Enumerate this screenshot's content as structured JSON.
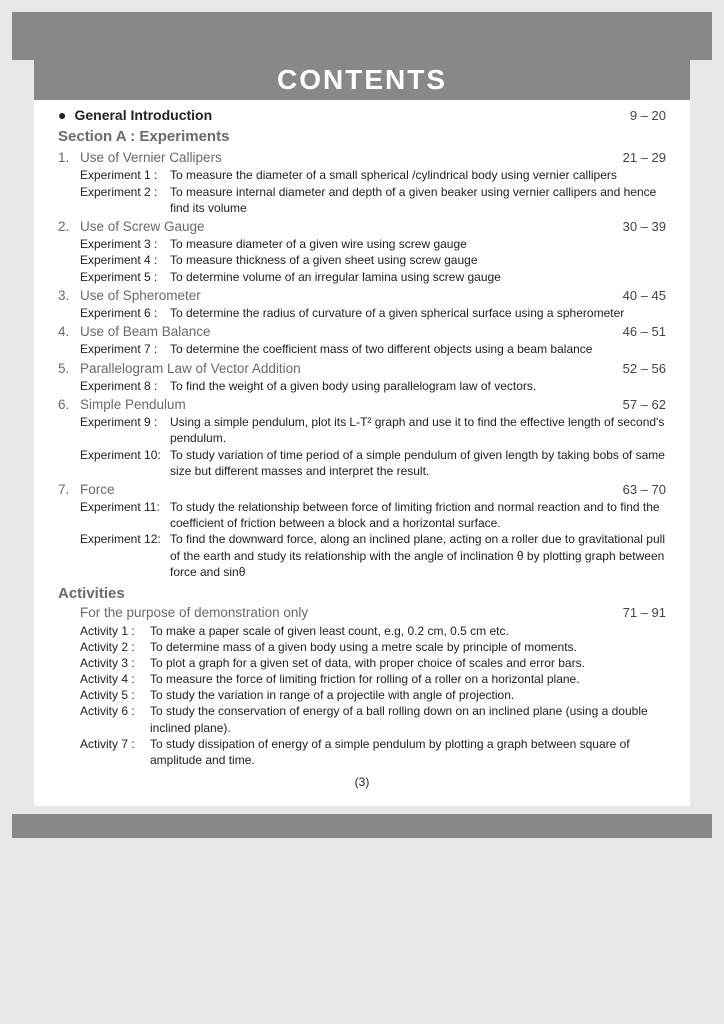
{
  "title": "CONTENTS",
  "general_intro": {
    "label": "General Introduction",
    "pages": "9 – 20"
  },
  "section_a": "Section A :  Experiments",
  "topics": [
    {
      "num": "1.",
      "title": "Use of Vernier Callipers",
      "pages": "21 – 29",
      "experiments": [
        {
          "label": "Experiment 1 :",
          "text": "To measure the diameter of a small spherical /cylindrical body using vernier callipers"
        },
        {
          "label": "Experiment 2 :",
          "text": "To measure internal diameter and depth of a given beaker using vernier callipers and hence find its volume"
        }
      ]
    },
    {
      "num": "2.",
      "title": "Use of Screw Gauge",
      "pages": "30 – 39",
      "experiments": [
        {
          "label": "Experiment 3 :",
          "text": "To measure diameter of a given wire using screw gauge"
        },
        {
          "label": "Experiment 4 :",
          "text": "To measure thickness of a given sheet using screw gauge"
        },
        {
          "label": "Experiment 5 :",
          "text": "To determine volume of an irregular lamina using screw gauge"
        }
      ]
    },
    {
      "num": "3.",
      "title": "Use of Spherometer",
      "pages": "40 – 45",
      "experiments": [
        {
          "label": "Experiment 6 :",
          "text": "To determine the radius of curvature of a given spherical surface using a spherometer"
        }
      ]
    },
    {
      "num": "4.",
      "title": "Use of Beam Balance",
      "pages": "46 – 51",
      "experiments": [
        {
          "label": "Experiment 7 :",
          "text": "To determine the coefficient mass of two different objects using a beam balance"
        }
      ]
    },
    {
      "num": "5.",
      "title": "Parallelogram Law of Vector Addition",
      "pages": "52 – 56",
      "experiments": [
        {
          "label": "Experiment 8 :",
          "text": "To find the weight of a given body using parallelogram law of vectors."
        }
      ]
    },
    {
      "num": "6.",
      "title": "Simple Pendulum",
      "pages": "57 – 62",
      "experiments": [
        {
          "label": "Experiment 9 :",
          "text": "Using a simple pendulum, plot its L-T² graph and use it to find the effective length of second's pendulum."
        },
        {
          "label": "Experiment 10:",
          "text": "To study variation of time period of a simple pendulum of given length by taking bobs of same size but different masses and interpret the result."
        }
      ]
    },
    {
      "num": "7.",
      "title": "Force",
      "pages": "63 – 70",
      "experiments": [
        {
          "label": "Experiment 11:",
          "text": "To study the relationship between force of limiting friction and normal reaction and to find the coefficient of friction between a block and a horizontal surface."
        },
        {
          "label": "Experiment 12:",
          "text": "To find the downward force, along an inclined plane, acting on a roller due to gravitational pull of the earth and study its relationship with the angle of inclination θ by plotting graph between force and sinθ"
        }
      ]
    }
  ],
  "activities_head": "Activities",
  "demo": {
    "text": "For the purpose of demonstration only",
    "pages": "71 – 91"
  },
  "activities": [
    {
      "label": "Activity 1 :",
      "text": "To make a paper scale of given least count, e.g, 0.2 cm, 0.5 cm etc."
    },
    {
      "label": "Activity 2 :",
      "text": "To determine mass of a given body using a metre scale by principle of moments."
    },
    {
      "label": "Activity 3 :",
      "text": "To plot a graph for a given set of data, with proper choice of scales and error bars."
    },
    {
      "label": "Activity 4 :",
      "text": "To measure the force of limiting friction for rolling of a roller on a horizontal plane."
    },
    {
      "label": "Activity 5 :",
      "text": "To study the variation in range of a projectile with angle of projection."
    },
    {
      "label": "Activity 6 :",
      "text": "To study the conservation of energy of a ball rolling down on an inclined plane (using a double inclined plane)."
    },
    {
      "label": "Activity 7 :",
      "text": "To study dissipation of energy of a simple pendulum by plotting a graph between square of amplitude and time."
    }
  ],
  "page_number": "(3)"
}
